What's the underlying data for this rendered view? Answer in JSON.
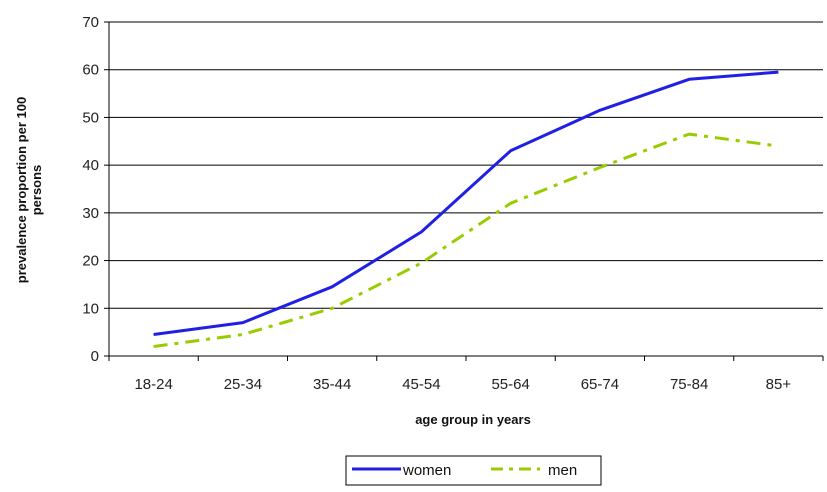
{
  "chart_data": {
    "type": "line",
    "title": "",
    "xlabel": "age group in years",
    "ylabel": "prevalence proportion per 100 persons",
    "ylabel_lines": [
      "prevalence proportion per 100",
      "persons"
    ],
    "categories": [
      "18-24",
      "25-34",
      "35-44",
      "45-54",
      "55-64",
      "65-74",
      "75-84",
      "85+"
    ],
    "ylim": [
      0,
      70
    ],
    "yticks": [
      0,
      10,
      20,
      30,
      40,
      50,
      60,
      70
    ],
    "grid": "horizontal",
    "legend_position": "bottom",
    "series": [
      {
        "name": "women",
        "color": "#1f1fe6",
        "style": "solid",
        "values": [
          4.5,
          7,
          14.5,
          26,
          43,
          51.5,
          58,
          59.5
        ]
      },
      {
        "name": "men",
        "color": "#99cc00",
        "style": "dash-dot",
        "values": [
          2,
          4.5,
          10,
          19.5,
          32,
          39.5,
          46.5,
          44
        ]
      }
    ]
  }
}
